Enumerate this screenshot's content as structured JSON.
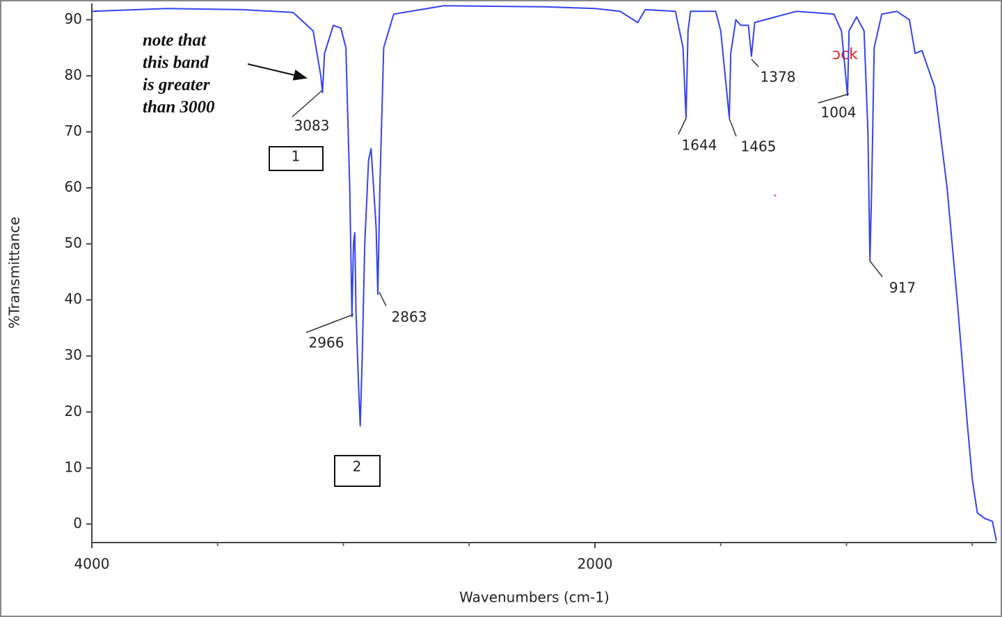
{
  "chart_data": {
    "type": "line",
    "xlabel": "Wavenumbers (cm-1)",
    "ylabel": "%Transmittance",
    "xlim": [
      4000,
      404
    ],
    "ylim": [
      -3.3,
      92.9
    ],
    "xticks": [
      4000,
      2000
    ],
    "xticks_minor": [
      3500,
      3000,
      2500,
      1500,
      1000,
      500
    ],
    "yticks": [
      0,
      10,
      20,
      30,
      40,
      50,
      60,
      70,
      80,
      90
    ],
    "series": [
      {
        "name": "%Transmittance",
        "color": "#3344ee",
        "x": [
          4000,
          3700,
          3400,
          3200,
          3120,
          3090,
          3083,
          3075,
          3040,
          3010,
          2990,
          2975,
          2966,
          2960,
          2955,
          2950,
          2940,
          2933,
          2925,
          2915,
          2900,
          2890,
          2880,
          2870,
          2863,
          2855,
          2840,
          2800,
          2600,
          2200,
          2000,
          1900,
          1830,
          1800,
          1680,
          1650,
          1638,
          1630,
          1620,
          1520,
          1500,
          1466,
          1460,
          1440,
          1420,
          1390,
          1378,
          1365,
          1200,
          1050,
          1020,
          996,
          990,
          960,
          930,
          915,
          907,
          900,
          890,
          860,
          800,
          750,
          727,
          700,
          650,
          600,
          560,
          520,
          500,
          480,
          450,
          420,
          404
        ],
        "values": [
          91.5,
          92,
          91.8,
          91.3,
          88,
          80,
          77,
          84,
          89,
          88.5,
          85,
          60,
          37,
          50,
          52,
          38,
          25,
          17.5,
          30,
          50,
          65,
          67,
          60,
          53,
          41,
          60,
          85,
          91,
          92.5,
          92.3,
          92,
          91.5,
          89.5,
          91.8,
          91.5,
          85,
          72.5,
          88,
          91.5,
          91.5,
          88,
          72.5,
          84,
          90,
          89,
          89,
          83.5,
          89.5,
          91.5,
          91,
          88,
          76.5,
          88,
          90.5,
          88,
          70,
          47,
          60,
          85,
          91,
          91.5,
          90,
          84,
          84.5,
          78,
          60,
          40,
          18,
          8,
          2,
          1,
          0.5,
          -3
        ]
      }
    ],
    "peak_labels": [
      3083,
      2966,
      2863,
      1644,
      1465,
      1378,
      1004,
      917
    ],
    "annotations": [
      "note that",
      "this band",
      "is greater",
      "than 3000"
    ],
    "boxes": [
      "1",
      "2"
    ],
    "stray_text": "ɔck"
  }
}
